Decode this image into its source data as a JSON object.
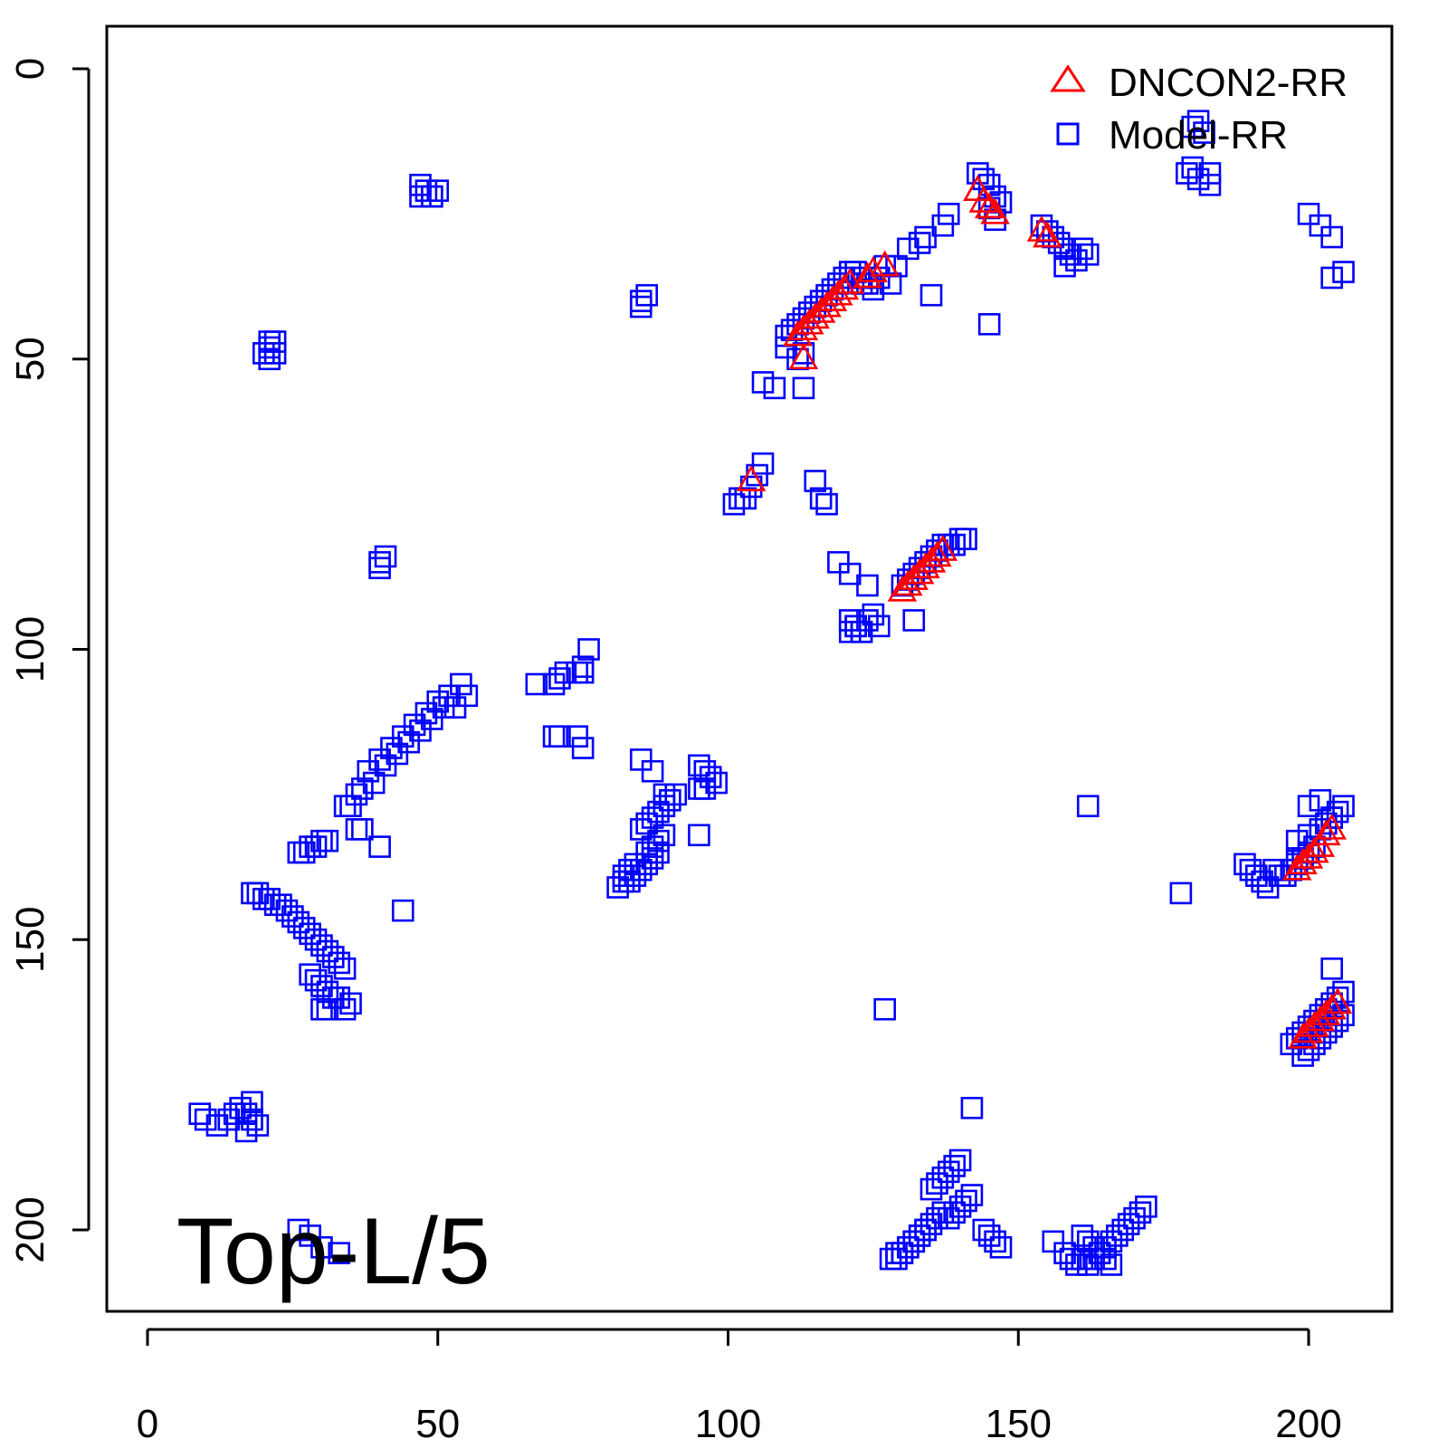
{
  "chart_data": {
    "type": "scatter",
    "title": "",
    "xlabel": "",
    "ylabel": "",
    "xlim": [
      -7,
      215
    ],
    "ylim": [
      -7,
      215
    ],
    "y_reversed": true,
    "x_ticks": [
      "0",
      "50",
      "100",
      "150",
      "200"
    ],
    "y_ticks": [
      "0",
      "50",
      "100",
      "150",
      "200"
    ],
    "annotation": "Top-L/5",
    "legend_position": "top-right",
    "series": [
      {
        "name": "Model-RR",
        "marker": "square",
        "color": "#0000ff",
        "x": [
          47,
          48,
          49,
          50,
          47,
          49,
          21,
          22,
          20,
          21,
          22,
          21,
          85,
          86,
          85,
          40,
          41,
          40,
          143,
          144,
          145,
          146,
          147,
          145,
          146,
          154,
          155,
          156,
          157,
          158,
          159,
          160,
          161,
          162,
          158,
          128,
          129,
          131,
          134,
          138,
          133,
          137,
          135,
          145,
          125,
          126,
          127,
          124,
          123,
          110,
          111,
          112,
          113,
          114,
          115,
          116,
          117,
          118,
          119,
          120,
          121,
          122,
          123,
          112,
          113,
          110,
          113,
          106,
          108,
          180,
          181,
          182,
          183,
          179,
          180,
          181,
          183,
          200,
          202,
          204,
          204,
          206,
          104,
          105,
          106,
          103,
          101,
          102,
          115,
          116,
          117,
          119,
          121,
          124,
          121,
          122,
          123,
          124,
          125,
          126,
          121,
          122,
          123,
          130,
          131,
          132,
          133,
          134,
          135,
          136,
          137,
          138,
          139,
          140,
          141,
          132,
          67,
          70,
          71,
          72,
          74,
          75,
          75,
          76,
          70,
          71,
          74,
          75,
          54,
          55,
          52,
          53,
          50,
          51,
          48,
          49,
          46,
          47,
          44,
          45,
          42,
          43,
          40,
          41,
          38,
          39,
          37,
          36,
          35,
          34,
          36,
          37,
          40,
          30,
          31,
          28,
          29,
          26,
          27,
          18,
          19,
          20,
          21,
          22,
          23,
          24,
          25,
          26,
          27,
          28,
          29,
          30,
          31,
          32,
          33,
          34,
          28,
          29,
          30,
          31,
          32,
          35,
          34,
          30,
          31,
          33,
          44,
          9,
          10,
          12,
          14,
          15,
          16,
          17,
          18,
          19,
          17,
          18,
          86,
          87,
          88,
          89,
          85,
          86,
          87,
          88,
          89,
          90,
          91,
          83,
          84,
          85,
          86,
          87,
          88,
          82,
          83,
          84,
          81,
          82,
          95,
          96,
          97,
          98,
          95,
          96,
          85,
          87,
          89,
          95,
          162,
          178,
          189,
          190,
          191,
          192,
          193,
          194,
          195,
          196,
          197,
          198,
          197,
          198,
          199,
          200,
          201,
          198,
          200,
          202,
          203,
          204,
          205,
          206,
          200,
          202,
          204,
          197,
          198,
          199,
          200,
          201,
          202,
          203,
          204,
          205,
          206,
          199,
          200,
          201,
          202,
          203,
          204,
          205,
          206,
          204,
          127,
          142,
          138,
          139,
          140,
          141,
          142,
          135,
          136,
          137,
          138,
          139,
          140,
          134,
          135,
          136,
          137,
          133,
          134,
          132,
          133,
          131,
          132,
          130,
          131,
          129,
          130,
          128,
          129,
          144,
          145,
          146,
          147,
          156,
          158,
          159,
          160,
          161,
          162,
          163,
          164,
          165,
          166,
          167,
          168,
          169,
          170,
          171,
          172,
          161,
          162,
          163,
          164,
          165,
          166,
          26,
          28,
          30,
          33
        ],
        "y": [
          22,
          21,
          22,
          21,
          20,
          22,
          47,
          47,
          49,
          50,
          49,
          48,
          40,
          39,
          41,
          85,
          84,
          86,
          18,
          19,
          20,
          22,
          23,
          24,
          26,
          27,
          28,
          29,
          30,
          31,
          32,
          33,
          31,
          32,
          34,
          37,
          34,
          31,
          29,
          25,
          30,
          27,
          39,
          44,
          38,
          36,
          34,
          37,
          36,
          46,
          45,
          44,
          43,
          42,
          41,
          40,
          39,
          38,
          37,
          36,
          35,
          35,
          37,
          50,
          49,
          48,
          55,
          54,
          55,
          10,
          9,
          11,
          18,
          18,
          17,
          19,
          20,
          25,
          27,
          29,
          36,
          35,
          72,
          70,
          68,
          74,
          75,
          74,
          71,
          74,
          75,
          85,
          87,
          89,
          95,
          96,
          97,
          95,
          94,
          96,
          97,
          96,
          97,
          89,
          88,
          87,
          86,
          85,
          84,
          83,
          82,
          82,
          82,
          81,
          81,
          95,
          106,
          106,
          105,
          104,
          104,
          103,
          104,
          100,
          115,
          115,
          115,
          117,
          106,
          108,
          108,
          110,
          109,
          110,
          111,
          112,
          113,
          114,
          115,
          116,
          117,
          118,
          119,
          120,
          121,
          123,
          124,
          125,
          127,
          127,
          131,
          131,
          134,
          133,
          133,
          134,
          134,
          135,
          135,
          142,
          142,
          143,
          143,
          144,
          144,
          145,
          146,
          147,
          148,
          149,
          150,
          151,
          152,
          153,
          154,
          155,
          156,
          157,
          158,
          159,
          160,
          161,
          162,
          162,
          162,
          160,
          145,
          180,
          181,
          182,
          181,
          180,
          179,
          180,
          181,
          182,
          183,
          178,
          135,
          134,
          133,
          132,
          131,
          130,
          129,
          128,
          127,
          126,
          125,
          140,
          139,
          138,
          137,
          136,
          135,
          139,
          138,
          137,
          141,
          140,
          120,
          121,
          122,
          123,
          124,
          124,
          119,
          121,
          125,
          132,
          127,
          142,
          137,
          138,
          139,
          140,
          141,
          138,
          139,
          139,
          138,
          136,
          138,
          137,
          136,
          135,
          134,
          133,
          132,
          131,
          130,
          129,
          128,
          127,
          127,
          126,
          129,
          168,
          167,
          166,
          165,
          164,
          163,
          162,
          161,
          160,
          159,
          170,
          169,
          168,
          167,
          166,
          165,
          164,
          163,
          155,
          162,
          179,
          198,
          197,
          196,
          195,
          194,
          193,
          192,
          191,
          190,
          189,
          188,
          200,
          199,
          198,
          197,
          201,
          200,
          202,
          201,
          203,
          202,
          204,
          203,
          205,
          204,
          205,
          204,
          200,
          201,
          202,
          203,
          202,
          204,
          205,
          206,
          205,
          206,
          205,
          204,
          203,
          202,
          201,
          200,
          199,
          198,
          197,
          196,
          201,
          202,
          203,
          204,
          205,
          206,
          200,
          201,
          203,
          204
        ]
      },
      {
        "name": "DNCON2-RR",
        "marker": "triangle",
        "color": "#ff0000",
        "x": [
          112,
          113,
          114,
          115,
          116,
          117,
          118,
          119,
          120,
          121,
          124,
          125,
          127,
          113,
          104,
          143,
          144,
          145,
          146,
          154,
          155,
          130,
          131,
          132,
          133,
          134,
          135,
          136,
          137,
          198,
          199,
          200,
          201,
          202,
          203,
          204,
          199,
          200,
          201,
          202,
          203,
          204,
          205
        ],
        "y": [
          46,
          45,
          44,
          43,
          42,
          41,
          40,
          39,
          38,
          37,
          36,
          35,
          34,
          50,
          71,
          21,
          23,
          24,
          25,
          28,
          29,
          90,
          89,
          88,
          87,
          86,
          85,
          84,
          83,
          138,
          137,
          136,
          135,
          134,
          132,
          131,
          167,
          166,
          165,
          164,
          163,
          162,
          161
        ]
      }
    ]
  }
}
